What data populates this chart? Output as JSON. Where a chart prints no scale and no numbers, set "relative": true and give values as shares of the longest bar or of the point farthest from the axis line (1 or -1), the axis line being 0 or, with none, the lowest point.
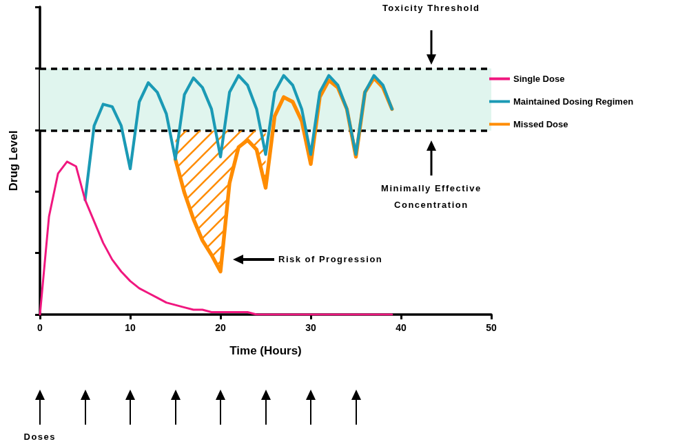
{
  "chart_data": {
    "type": "line",
    "relative": true,
    "xlabel": "Time (Hours)",
    "ylabel": "Drug Level",
    "xlim": [
      0,
      50
    ],
    "xticks": [
      0,
      10,
      20,
      30,
      40,
      50
    ],
    "grid": false,
    "legend": "right",
    "marker": "none",
    "line_style": "solid",
    "series": [
      {
        "name": "Single Dose",
        "color": "#f0177f",
        "x": [
          0,
          1,
          2,
          3,
          4,
          5,
          6,
          7,
          8,
          9,
          10,
          11,
          12,
          13,
          14,
          15,
          16,
          17,
          18,
          19,
          20,
          21,
          22,
          23,
          24,
          25,
          26,
          27,
          28,
          29,
          30,
          31,
          32,
          33,
          34,
          35,
          36,
          37,
          38,
          39
        ],
        "values": [
          0,
          0.41,
          0.59,
          0.64,
          0.62,
          0.48,
          0.39,
          0.3,
          0.23,
          0.18,
          0.14,
          0.11,
          0.09,
          0.07,
          0.05,
          0.04,
          0.03,
          0.02,
          0.02,
          0.01,
          0.01,
          0.01,
          0.01,
          0.01,
          0,
          0,
          0,
          0,
          0,
          0,
          0,
          0,
          0,
          0,
          0,
          0,
          0,
          0,
          0,
          0
        ]
      },
      {
        "name": "Maintained Dosing Regimen",
        "color": "#1b9ab5",
        "x": [
          5,
          6,
          7,
          8,
          9,
          10,
          11,
          12,
          13,
          14,
          15,
          16,
          17,
          18,
          19,
          20,
          21,
          22,
          23,
          24,
          25,
          26,
          27,
          28,
          29,
          30,
          31,
          32,
          33,
          34,
          35,
          36,
          37,
          38,
          39
        ],
        "values": [
          0.48,
          0.79,
          0.88,
          0.87,
          0.79,
          0.61,
          0.89,
          0.97,
          0.93,
          0.84,
          0.65,
          0.92,
          0.99,
          0.95,
          0.86,
          0.66,
          0.93,
          1.0,
          0.96,
          0.86,
          0.67,
          0.93,
          1.0,
          0.96,
          0.86,
          0.67,
          0.93,
          1.0,
          0.96,
          0.86,
          0.67,
          0.93,
          1.0,
          0.96,
          0.86
        ]
      },
      {
        "name": "Missed Dose",
        "color": "#ff8c00",
        "x": [
          15,
          16,
          17,
          18,
          19,
          20,
          21,
          22,
          23,
          24,
          25,
          26,
          27,
          28,
          29,
          30,
          31,
          32,
          33,
          34,
          35,
          36,
          37,
          38,
          39
        ],
        "values": [
          0.65,
          0.51,
          0.4,
          0.31,
          0.25,
          0.18,
          0.55,
          0.7,
          0.73,
          0.69,
          0.53,
          0.83,
          0.91,
          0.89,
          0.81,
          0.63,
          0.91,
          0.98,
          0.95,
          0.86,
          0.66,
          0.93,
          0.99,
          0.95,
          0.86
        ],
        "lower": [
          0.65,
          0.51,
          0.4,
          0.31,
          0.25,
          0.18,
          0.55,
          0.7,
          0.73,
          0.69,
          0.53,
          null,
          null,
          null,
          null,
          null,
          null,
          null,
          null,
          null,
          null,
          null,
          null,
          null,
          null
        ],
        "upper": [
          0.77,
          0.77,
          0.77,
          0.77,
          0.77,
          0.77,
          0.77,
          0.77,
          0.77,
          0.77,
          0.77,
          null,
          null,
          null,
          null,
          null,
          null,
          null,
          null,
          null,
          null,
          null,
          null,
          null,
          null
        ]
      }
    ],
    "bands": [
      {
        "axis": "y",
        "from": 0.77,
        "to": 1.03,
        "color": "#e0f5ee"
      }
    ],
    "ref_lines": [
      {
        "axis": "y",
        "value": 1.03,
        "color": "#000000",
        "line_style": "dashed"
      },
      {
        "axis": "y",
        "value": 0.77,
        "color": "#000000",
        "line_style": "dashed"
      }
    ],
    "annotations": [
      "Toxicity Threshold",
      "Minimally Effective Concentration",
      "Risk of Progression",
      "Doses"
    ]
  }
}
